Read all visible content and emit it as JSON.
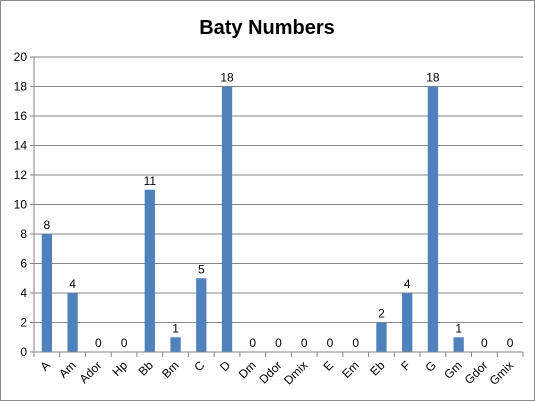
{
  "chart_data": {
    "type": "bar",
    "title": "Baty Numbers",
    "xlabel": "",
    "ylabel": "",
    "ylim": [
      0,
      20
    ],
    "yticks": [
      0,
      2,
      4,
      6,
      8,
      10,
      12,
      14,
      16,
      18,
      20
    ],
    "grid": true,
    "legend": "none",
    "bar_color": "#4f81bd",
    "grid_color": "#868686",
    "categories": [
      "A",
      "Am",
      "Ador",
      "Hp",
      "Bb",
      "Bm",
      "C",
      "D",
      "Dm",
      "Ddor",
      "Dmix",
      "E",
      "Em",
      "Eb",
      "F",
      "G",
      "Gm",
      "Gdor",
      "Gmix"
    ],
    "values": [
      8,
      4,
      0,
      0,
      11,
      1,
      5,
      18,
      0,
      0,
      0,
      0,
      0,
      2,
      4,
      18,
      1,
      0,
      0
    ]
  }
}
